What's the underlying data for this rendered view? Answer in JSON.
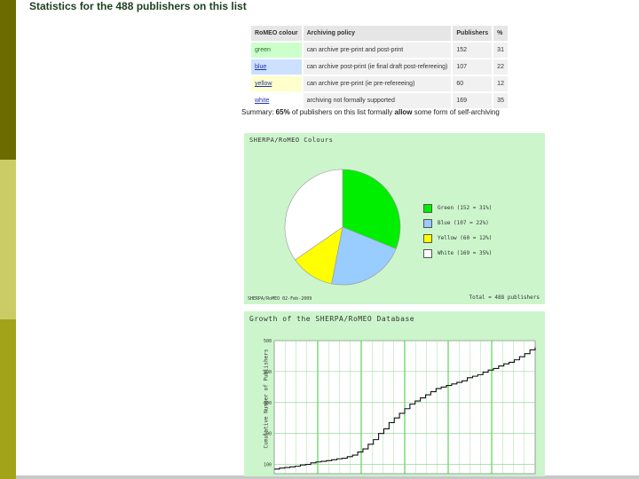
{
  "page": {
    "title": "Statistics for the 488 publishers on this list"
  },
  "table": {
    "headers": [
      "RoMEO colour",
      "Archiving policy",
      "Publishers",
      "%"
    ],
    "rows": [
      {
        "colour": "green",
        "policy": "can archive pre-print and post-print",
        "publishers": "152",
        "percent": "31",
        "bg": "#ccffcc"
      },
      {
        "colour": "blue",
        "policy": "can archive post-print (ie final draft post-refereeing)",
        "publishers": "107",
        "percent": "22",
        "bg": "#cce0ff"
      },
      {
        "colour": "yellow",
        "policy": "can archive pre-print (ie pre-refereeing)",
        "publishers": "60",
        "percent": "12",
        "bg": "#ffffcc"
      },
      {
        "colour": "white",
        "policy": "archiving not formally supported",
        "publishers": "169",
        "percent": "35",
        "bg": "#ffffff"
      }
    ]
  },
  "summary": {
    "prefix": "Summary: ",
    "percent": "65%",
    "middle": " of publishers on this list formally ",
    "allow": "allow",
    "suffix": " some form of self-archiving"
  },
  "pie_chart": {
    "title": "SHERPA/RoMEO Colours",
    "footer_left": "SHERPA/RoMEO 02-Feb-2009",
    "footer_right": "Total = 488 publishers",
    "colors": {
      "green": "#00ee00",
      "blue": "#99ccff",
      "yellow": "#ffff00",
      "white": "#ffffff"
    }
  },
  "growth_chart": {
    "title": "Growth of the SHERPA/RoMEO Database",
    "ylabel": "Cumulative Number of Publishers"
  },
  "chart_data": [
    {
      "type": "pie",
      "title": "SHERPA/RoMEO Colours",
      "categories": [
        "Green",
        "Blue",
        "Yellow",
        "White"
      ],
      "values": [
        152,
        107,
        60,
        169
      ],
      "labels": [
        "Green (152 = 31%)",
        "Blue (107 = 22%)",
        "Yellow (60 = 12%)",
        "White (169 = 35%)"
      ],
      "colors": [
        "#00ee00",
        "#99ccff",
        "#ffff00",
        "#ffffff"
      ],
      "legend": "right"
    },
    {
      "type": "line",
      "title": "Growth of the SHERPA/RoMEO Database",
      "ylabel": "Cumulative Number of Publishers",
      "yticks": [
        "100",
        "200",
        "300",
        "400",
        "500"
      ],
      "ylim": [
        70,
        500
      ],
      "x": [
        0,
        2,
        4,
        6,
        8,
        10,
        12,
        14,
        16,
        18,
        20,
        22,
        24,
        26,
        28,
        30,
        32,
        34,
        36,
        38,
        40,
        42,
        44,
        46,
        48,
        50,
        52,
        54,
        56,
        58,
        60,
        62,
        64,
        66,
        68,
        70,
        72,
        74,
        76,
        78,
        80,
        82,
        84,
        86,
        88,
        90,
        92,
        94,
        96,
        98,
        100
      ],
      "y": [
        85,
        88,
        90,
        92,
        94,
        98,
        100,
        105,
        108,
        110,
        112,
        115,
        118,
        120,
        125,
        130,
        140,
        150,
        165,
        180,
        200,
        215,
        235,
        250,
        265,
        280,
        295,
        305,
        315,
        325,
        335,
        345,
        350,
        355,
        360,
        365,
        370,
        380,
        385,
        390,
        398,
        405,
        410,
        418,
        425,
        430,
        438,
        448,
        458,
        470,
        478
      ],
      "grid": true
    }
  ]
}
